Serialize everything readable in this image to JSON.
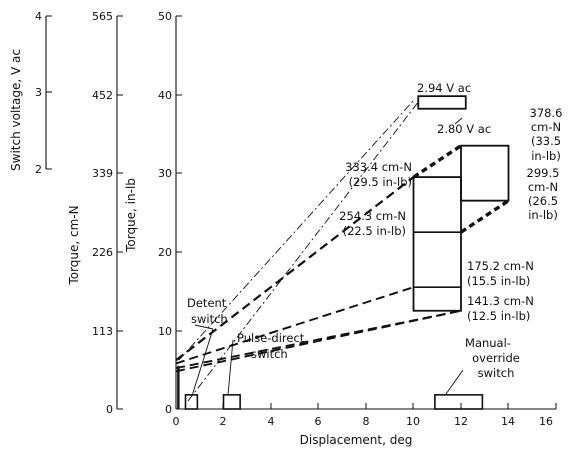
{
  "chart_data": {
    "type": "line",
    "title": "",
    "xlabel": "Displacement, deg",
    "ylabel": "Torque, in-lb",
    "xlim": [
      0,
      16
    ],
    "ylim": [
      0,
      50
    ],
    "x_ticks": [
      "0",
      "2",
      "4",
      "6",
      "8",
      "10",
      "12",
      "14",
      "16"
    ],
    "y_ticks": [
      "0",
      "10",
      "20",
      "30",
      "40",
      "50"
    ],
    "secondary_axes": [
      {
        "label": "Torque, cm-N",
        "ticks": [
          "0",
          "113",
          "226",
          "339",
          "452",
          "565"
        ]
      },
      {
        "label": "Switch voltage, V ac",
        "ticks": [
          "2",
          "3",
          "4"
        ],
        "range": [
          2,
          4
        ]
      }
    ],
    "annotations": {
      "v294": "2.94 V ac",
      "v280": "2.80 V ac",
      "t3786": [
        "378.6",
        "cm-N",
        "(33.5",
        "in-lb)"
      ],
      "t3334": [
        "333.4 cm-N",
        "(29.5 in-lb)"
      ],
      "t2995": [
        "299.5",
        "cm-N",
        "(26.5",
        "in-lb)"
      ],
      "t2543": [
        "254.3 cm-N",
        "(22.5 in-lb)"
      ],
      "t1752": [
        "175.2 cm-N",
        "(15.5 in-lb)"
      ],
      "t1413": [
        "141.3 cm-N",
        "(12.5 in-lb)"
      ],
      "detent": [
        "Detent",
        "switch"
      ],
      "pulse": [
        "Pulse-direct",
        "switch"
      ],
      "manual": [
        "Manual-",
        "override",
        "switch"
      ]
    },
    "envelope": {
      "rect_x": [
        10,
        12
      ],
      "rect_y": [
        12.5,
        29.5
      ],
      "right_y": [
        22.5,
        33.5
      ],
      "para_x": [
        12,
        14
      ],
      "para_y": [
        22.5,
        33.5,
        26.5,
        31.5
      ],
      "dividers_y": [
        15.5,
        22.5,
        29.5
      ],
      "dividers_right_y": [
        22.5,
        26.5
      ]
    },
    "dashed_lines": [
      {
        "from": [
          0,
          6.2
        ],
        "to": [
          10,
          29.5
        ],
        "heavy": true
      },
      {
        "from": [
          0,
          5.8
        ],
        "to": [
          10,
          15.5
        ]
      },
      {
        "from": [
          0,
          5.2
        ],
        "to": [
          12,
          12.5
        ]
      }
    ],
    "voltage_rects": [
      {
        "x": [
          10.2,
          12.2
        ],
        "y": [
          38.2,
          39.8
        ],
        "label": "v294"
      }
    ],
    "switch_rects": [
      {
        "name": "detent",
        "x": [
          0.4,
          0.9
        ],
        "y": [
          0,
          1.8
        ]
      },
      {
        "name": "pulse",
        "x": [
          2.0,
          2.7
        ],
        "y": [
          0,
          1.8
        ]
      },
      {
        "name": "manual",
        "x": [
          10.9,
          12.9
        ],
        "y": [
          0,
          1.8
        ]
      }
    ],
    "vertical_bar": {
      "x": 0.1,
      "y": [
        0,
        5.5
      ]
    }
  }
}
